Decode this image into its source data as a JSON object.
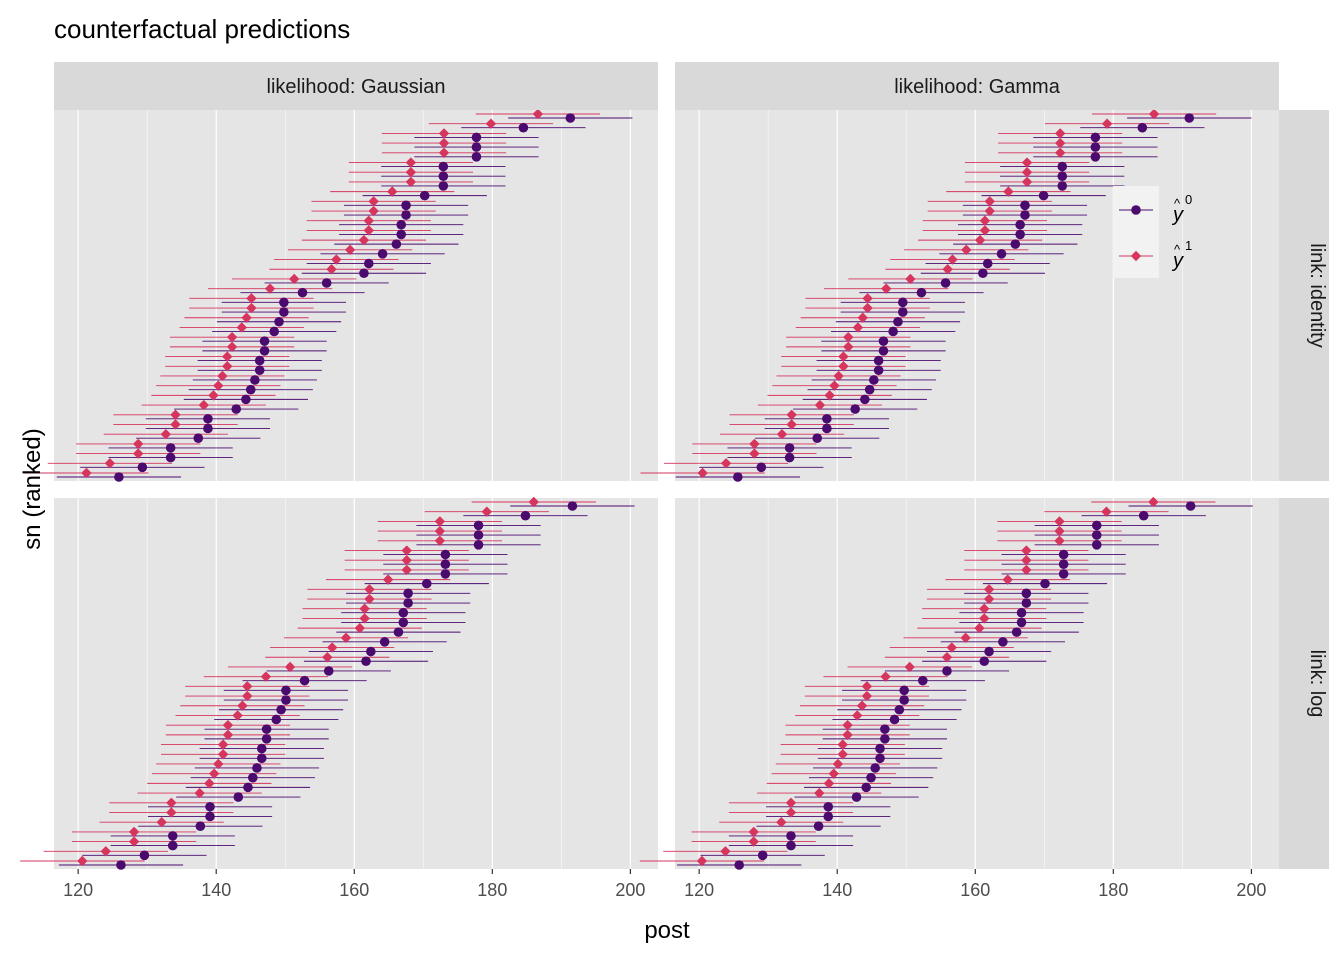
{
  "chart_data": {
    "type": "scatter",
    "title": "counterfactual predictions",
    "xlabel": "post",
    "ylabel": "sn (ranked)",
    "xlim": [
      116.5,
      204
    ],
    "x_ticks": [
      120,
      140,
      160,
      180,
      200
    ],
    "grid": true,
    "facet_cols": [
      "likelihood: Gaussian",
      "likelihood: Gamma"
    ],
    "facet_rows": [
      "link: identity",
      "link: log"
    ],
    "legend": {
      "position": "inside-top-right",
      "entries": [
        {
          "series": "y0",
          "symbol": "y",
          "superscript": "0"
        },
        {
          "series": "y1",
          "symbol": "y",
          "superscript": "1"
        }
      ]
    },
    "colors": {
      "y0": "#4b0a6e",
      "y1": "#d6355e",
      "panel": "#e5e5e5",
      "strip": "#d9d9d9",
      "grid": "#ffffff"
    },
    "interval_halfwidth": 9,
    "rank_order": "descending",
    "panels": [
      {
        "row": "link: identity",
        "col": "likelihood: Gaussian",
        "y0": [
          191.3,
          184.5,
          177.7,
          177.7,
          177.7,
          172.9,
          172.9,
          172.9,
          170.2,
          167.5,
          167.5,
          166.8,
          166.8,
          166.1,
          164.1,
          162.1,
          161.4,
          156.0,
          152.5,
          149.8,
          149.8,
          149.1,
          148.4,
          147.0,
          147.0,
          146.3,
          146.3,
          145.6,
          145.0,
          144.3,
          142.9,
          138.8,
          138.8,
          137.4,
          133.4,
          133.4,
          129.3,
          125.9
        ],
        "y1": [
          186.6,
          179.8,
          173.0,
          173.0,
          173.0,
          168.2,
          168.2,
          168.2,
          165.5,
          162.8,
          162.8,
          162.1,
          162.1,
          161.4,
          159.4,
          157.4,
          156.7,
          151.3,
          147.8,
          145.1,
          145.1,
          144.4,
          143.7,
          142.3,
          142.3,
          141.6,
          141.6,
          140.9,
          140.3,
          139.6,
          138.2,
          134.1,
          134.1,
          132.7,
          128.7,
          128.7,
          124.6,
          121.2
        ]
      },
      {
        "row": "link: identity",
        "col": "likelihood: Gamma",
        "y0": [
          191.0,
          184.2,
          177.4,
          177.4,
          177.4,
          172.6,
          172.6,
          172.6,
          169.9,
          167.2,
          167.2,
          166.5,
          166.5,
          165.8,
          163.8,
          161.8,
          161.1,
          155.7,
          152.2,
          149.5,
          149.5,
          148.8,
          148.1,
          146.7,
          146.7,
          146.0,
          146.0,
          145.3,
          144.7,
          144.0,
          142.6,
          138.5,
          138.5,
          137.1,
          133.1,
          133.1,
          129.0,
          125.6
        ],
        "y1": [
          185.9,
          179.1,
          172.3,
          172.3,
          172.3,
          167.5,
          167.5,
          167.5,
          164.8,
          162.1,
          162.1,
          161.4,
          161.4,
          160.7,
          158.7,
          156.7,
          156.0,
          150.6,
          147.1,
          144.4,
          144.4,
          143.7,
          143.0,
          141.6,
          141.6,
          140.9,
          140.9,
          140.2,
          139.6,
          138.9,
          137.5,
          133.4,
          133.4,
          132.0,
          128.0,
          128.0,
          123.9,
          120.5
        ]
      },
      {
        "row": "link: log",
        "col": "likelihood: Gaussian",
        "y0": [
          191.6,
          184.8,
          178.0,
          178.0,
          178.0,
          173.2,
          173.2,
          173.2,
          170.5,
          167.8,
          167.8,
          167.1,
          167.1,
          166.4,
          164.4,
          162.4,
          161.7,
          156.3,
          152.8,
          150.1,
          150.1,
          149.4,
          148.7,
          147.3,
          147.3,
          146.6,
          146.6,
          145.9,
          145.3,
          144.6,
          143.2,
          139.1,
          139.1,
          137.7,
          133.7,
          133.7,
          129.6,
          126.2
        ],
        "y1": [
          186.0,
          179.2,
          172.4,
          172.4,
          172.4,
          167.6,
          167.6,
          167.6,
          164.9,
          162.2,
          162.2,
          161.5,
          161.5,
          160.8,
          158.8,
          156.8,
          156.1,
          150.7,
          147.2,
          144.5,
          144.5,
          143.8,
          143.1,
          141.7,
          141.7,
          141.0,
          141.0,
          140.3,
          139.7,
          139.0,
          137.6,
          133.5,
          133.5,
          132.1,
          128.1,
          128.1,
          124.0,
          120.6
        ]
      },
      {
        "row": "link: log",
        "col": "likelihood: Gamma",
        "y0": [
          191.2,
          184.4,
          177.6,
          177.6,
          177.6,
          172.8,
          172.8,
          172.8,
          170.1,
          167.4,
          167.4,
          166.7,
          166.7,
          166.0,
          164.0,
          162.0,
          161.3,
          155.9,
          152.4,
          149.7,
          149.7,
          149.0,
          148.3,
          146.9,
          146.9,
          146.2,
          146.2,
          145.5,
          144.9,
          144.2,
          142.8,
          138.7,
          138.7,
          137.3,
          133.3,
          133.3,
          129.2,
          125.8
        ],
        "y1": [
          185.8,
          179.0,
          172.2,
          172.2,
          172.2,
          167.4,
          167.4,
          167.4,
          164.7,
          162.0,
          162.0,
          161.3,
          161.3,
          160.6,
          158.6,
          156.6,
          155.9,
          150.5,
          147.0,
          144.3,
          144.3,
          143.6,
          142.9,
          141.5,
          141.5,
          140.8,
          140.8,
          140.1,
          139.5,
          138.8,
          137.4,
          133.3,
          133.3,
          131.9,
          127.9,
          127.9,
          123.8,
          120.4
        ]
      }
    ]
  }
}
